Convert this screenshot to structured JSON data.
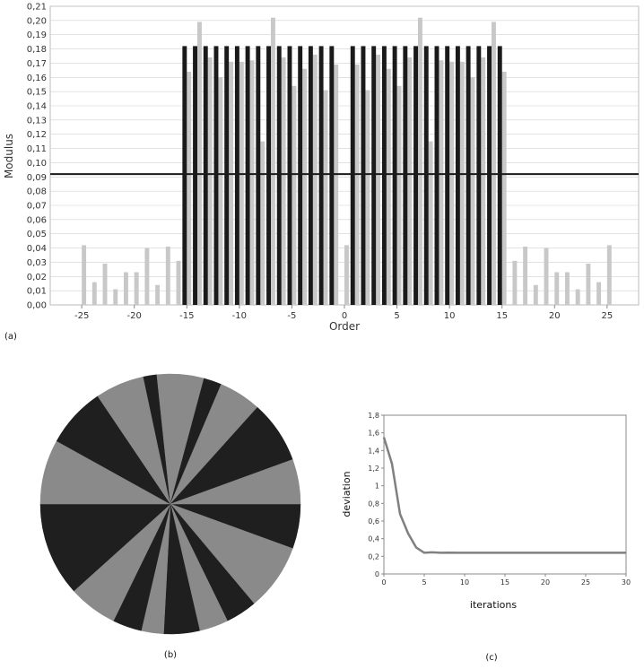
{
  "chart_data": [
    {
      "panel_label": "(a)",
      "type": "bar",
      "xlabel": "Order",
      "ylabel": "Modulus",
      "xlim": [
        -28,
        28
      ],
      "ylim": [
        0,
        0.21
      ],
      "x_ticks": [
        -25,
        -20,
        -15,
        -10,
        -5,
        0,
        5,
        10,
        15,
        20,
        25
      ],
      "y_ticks": [
        "0,00",
        "0,01",
        "0,02",
        "0,03",
        "0,04",
        "0,05",
        "0,06",
        "0,07",
        "0,08",
        "0,09",
        "0,10",
        "0,11",
        "0,12",
        "0,13",
        "0,14",
        "0,15",
        "0,16",
        "0,17",
        "0,18",
        "0,19",
        "0,20",
        "0,21"
      ],
      "threshold": 0.092,
      "colors": {
        "series_black": "#1a1a1a",
        "series_gray": "#c8c8c8",
        "threshold": "#1a1a1a",
        "grid": "#d0d0d0"
      },
      "series": [
        {
          "x": [
            -15,
            -14,
            -13,
            -12,
            -11,
            -10,
            -9,
            -8,
            -7,
            -6,
            -5,
            -4,
            -3,
            -2,
            -1,
            1,
            2,
            3,
            4,
            5,
            6,
            7,
            8,
            9,
            10,
            11,
            12,
            13,
            14,
            15
          ],
          "values": [
            0.182,
            0.182,
            0.182,
            0.182,
            0.182,
            0.182,
            0.182,
            0.182,
            0.182,
            0.182,
            0.182,
            0.182,
            0.182,
            0.182,
            0.182,
            0.182,
            0.182,
            0.182,
            0.182,
            0.182,
            0.182,
            0.182,
            0.182,
            0.182,
            0.182,
            0.182,
            0.182,
            0.182,
            0.182,
            0.182
          ]
        },
        {
          "x": [
            -25,
            -24,
            -23,
            -22,
            -21,
            -20,
            -19,
            -18,
            -17,
            -16,
            -15,
            -14,
            -13,
            -12,
            -11,
            -10,
            -9,
            -8,
            -7,
            -6,
            -5,
            -4,
            -3,
            -2,
            -1,
            0,
            1,
            2,
            3,
            4,
            5,
            6,
            7,
            8,
            9,
            10,
            11,
            12,
            13,
            14,
            15,
            16,
            17,
            18,
            19,
            20,
            21,
            22,
            23,
            24,
            25
          ],
          "values": [
            0.042,
            0.016,
            0.029,
            0.011,
            0.023,
            0.023,
            0.04,
            0.014,
            0.041,
            0.031,
            0.164,
            0.199,
            0.174,
            0.16,
            0.171,
            0.171,
            0.172,
            0.115,
            0.202,
            0.174,
            0.154,
            0.166,
            0.176,
            0.151,
            0.169,
            0.042,
            0.169,
            0.151,
            0.176,
            0.166,
            0.154,
            0.174,
            0.202,
            0.115,
            0.172,
            0.171,
            0.171,
            0.16,
            0.174,
            0.199,
            0.164,
            0.031,
            0.041,
            0.014,
            0.04,
            0.023,
            0.023,
            0.011,
            0.029,
            0.016,
            0.042
          ]
        }
      ]
    },
    {
      "panel_label": "(b)",
      "type": "pie",
      "colors": {
        "dark": "#1f1f1f",
        "light": "#8a8a8a"
      },
      "slices": [
        {
          "start": 0,
          "end": 20,
          "color": "dark"
        },
        {
          "start": 20,
          "end": 50,
          "color": "light"
        },
        {
          "start": 50,
          "end": 64,
          "color": "dark"
        },
        {
          "start": 64,
          "end": 77,
          "color": "light"
        },
        {
          "start": 77,
          "end": 93,
          "color": "dark"
        },
        {
          "start": 93,
          "end": 103,
          "color": "light"
        },
        {
          "start": 103,
          "end": 116,
          "color": "dark"
        },
        {
          "start": 116,
          "end": 138,
          "color": "light"
        },
        {
          "start": 138,
          "end": 180,
          "color": "dark"
        },
        {
          "start": 180,
          "end": 209,
          "color": "light"
        },
        {
          "start": 209,
          "end": 236,
          "color": "dark"
        },
        {
          "start": 236,
          "end": 258,
          "color": "light"
        },
        {
          "start": 258,
          "end": 264,
          "color": "dark"
        },
        {
          "start": 264,
          "end": 285,
          "color": "light"
        },
        {
          "start": 285,
          "end": 293,
          "color": "dark"
        },
        {
          "start": 293,
          "end": 312,
          "color": "light"
        },
        {
          "start": 312,
          "end": 340,
          "color": "dark"
        },
        {
          "start": 340,
          "end": 360,
          "color": "light"
        }
      ]
    },
    {
      "panel_label": "(c)",
      "type": "line",
      "xlabel": "iterations",
      "ylabel": "deviation",
      "xlim": [
        0,
        30
      ],
      "ylim": [
        0,
        1.8
      ],
      "x_ticks": [
        "0",
        "5",
        "10",
        "15",
        "20",
        "25",
        "30"
      ],
      "y_ticks": [
        "0",
        "0,2",
        "0,4",
        "0,6",
        "0,8",
        "1",
        "1,2",
        "1,4",
        "1,6",
        "1,8"
      ],
      "colors": {
        "line": "#808080",
        "frame": "#888888"
      },
      "series": [
        {
          "x": [
            0,
            1,
            2,
            3,
            4,
            5,
            6,
            7,
            8,
            9,
            10,
            15,
            20,
            25,
            30
          ],
          "values": [
            1.55,
            1.25,
            0.68,
            0.46,
            0.3,
            0.24,
            0.245,
            0.24,
            0.242,
            0.24,
            0.24,
            0.24,
            0.24,
            0.24,
            0.24
          ]
        }
      ]
    }
  ]
}
